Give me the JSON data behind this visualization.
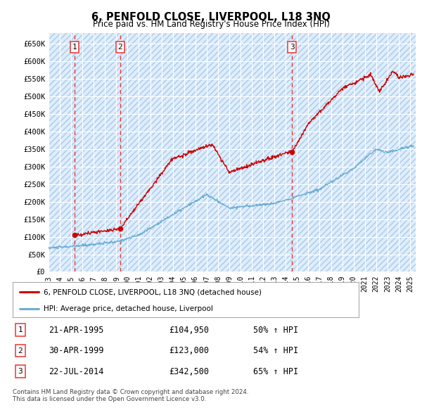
{
  "title": "6, PENFOLD CLOSE, LIVERPOOL, L18 3NQ",
  "subtitle": "Price paid vs. HM Land Registry's House Price Index (HPI)",
  "legend_line1": "6, PENFOLD CLOSE, LIVERPOOL, L18 3NQ (detached house)",
  "legend_line2": "HPI: Average price, detached house, Liverpool",
  "footer1": "Contains HM Land Registry data © Crown copyright and database right 2024.",
  "footer2": "This data is licensed under the Open Government Licence v3.0.",
  "sale_points": [
    {
      "num": 1,
      "price": 104950,
      "x": 1995.31
    },
    {
      "num": 2,
      "price": 123000,
      "x": 1999.33
    },
    {
      "num": 3,
      "price": 342500,
      "x": 2014.56
    }
  ],
  "table_rows": [
    {
      "num": 1,
      "date": "21-APR-1995",
      "price": "£104,950",
      "pct": "50% ↑ HPI"
    },
    {
      "num": 2,
      "date": "30-APR-1999",
      "price": "£123,000",
      "pct": "54% ↑ HPI"
    },
    {
      "num": 3,
      "date": "22-JUL-2014",
      "price": "£342,500",
      "pct": "65% ↑ HPI"
    }
  ],
  "hpi_color": "#6baed6",
  "price_color": "#cc0000",
  "vline_color": "#ee3333",
  "ylim": [
    0,
    680000
  ],
  "xlim": [
    1993.0,
    2025.5
  ],
  "yticks": [
    0,
    50000,
    100000,
    150000,
    200000,
    250000,
    300000,
    350000,
    400000,
    450000,
    500000,
    550000,
    600000,
    650000
  ],
  "ytick_labels": [
    "£0",
    "£50K",
    "£100K",
    "£150K",
    "£200K",
    "£250K",
    "£300K",
    "£350K",
    "£400K",
    "£450K",
    "£500K",
    "£550K",
    "£600K",
    "£650K"
  ],
  "xticks": [
    1993,
    1994,
    1995,
    1996,
    1997,
    1998,
    1999,
    2000,
    2001,
    2002,
    2003,
    2004,
    2005,
    2006,
    2007,
    2008,
    2009,
    2010,
    2011,
    2012,
    2013,
    2014,
    2015,
    2016,
    2017,
    2018,
    2019,
    2020,
    2021,
    2022,
    2023,
    2024,
    2025
  ],
  "bg_color": "#ddeeff",
  "hatch_color": "#c5d8ec"
}
